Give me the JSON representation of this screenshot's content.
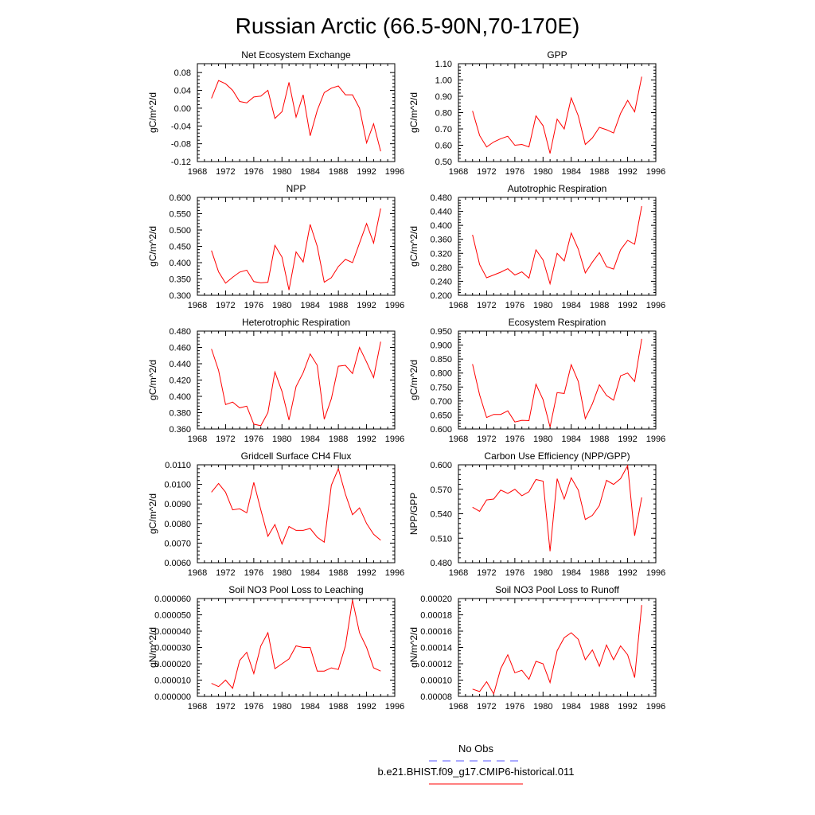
{
  "title": "Russian Arctic (66.5-90N,70-170E)",
  "legend": {
    "entries": [
      {
        "label": "No Obs",
        "color": "#5555ff",
        "style": "dashed"
      },
      {
        "label": "b.e21.BHIST.f09_g17.CMIP6-historical.011",
        "color": "#ff0000",
        "style": "solid"
      }
    ]
  },
  "chart_data": [
    {
      "type": "line",
      "title": "Net Ecosystem Exchange",
      "ylabel": "gC/m^2/d",
      "xlim": [
        1968,
        1996
      ],
      "xticks": [
        "1968",
        "1972",
        "1976",
        "1980",
        "1984",
        "1988",
        "1992",
        "1996"
      ],
      "ylim": [
        -0.12,
        0.1
      ],
      "yticks": [
        "-0.12",
        "-0.08",
        "-0.04",
        "0.00",
        "0.04",
        "0.08"
      ],
      "series": [
        {
          "color": "#ff0000",
          "x": [
            1970,
            1971,
            1972,
            1973,
            1974,
            1975,
            1976,
            1977,
            1978,
            1979,
            1980,
            1981,
            1982,
            1983,
            1984,
            1985,
            1986,
            1987,
            1988,
            1989,
            1990,
            1991,
            1992,
            1993,
            1994
          ],
          "y": [
            0.022,
            0.062,
            0.055,
            0.04,
            0.015,
            0.012,
            0.025,
            0.027,
            0.04,
            -0.023,
            -0.008,
            0.058,
            -0.02,
            0.03,
            -0.062,
            -0.005,
            0.035,
            0.045,
            0.05,
            0.03,
            0.03,
            0.0,
            -0.078,
            -0.035,
            -0.097
          ]
        }
      ]
    },
    {
      "type": "line",
      "title": "GPP",
      "ylabel": "gC/m^2/d",
      "xlim": [
        1968,
        1996
      ],
      "xticks": [
        "1968",
        "1972",
        "1976",
        "1980",
        "1984",
        "1988",
        "1992",
        "1996"
      ],
      "ylim": [
        0.5,
        1.1
      ],
      "yticks": [
        "0.50",
        "0.60",
        "0.70",
        "0.80",
        "0.90",
        "1.00",
        "1.10"
      ],
      "series": [
        {
          "color": "#ff0000",
          "x": [
            1970,
            1971,
            1972,
            1973,
            1974,
            1975,
            1976,
            1977,
            1978,
            1979,
            1980,
            1981,
            1982,
            1983,
            1984,
            1985,
            1986,
            1987,
            1988,
            1989,
            1990,
            1991,
            1992,
            1993,
            1994
          ],
          "y": [
            0.81,
            0.66,
            0.59,
            0.62,
            0.64,
            0.655,
            0.6,
            0.605,
            0.59,
            0.78,
            0.72,
            0.55,
            0.76,
            0.7,
            0.89,
            0.78,
            0.605,
            0.645,
            0.71,
            0.695,
            0.675,
            0.795,
            0.875,
            0.805,
            1.02
          ]
        }
      ]
    },
    {
      "type": "line",
      "title": "NPP",
      "ylabel": "gC/m^2/d",
      "xlim": [
        1968,
        1996
      ],
      "xticks": [
        "1968",
        "1972",
        "1976",
        "1980",
        "1984",
        "1988",
        "1992",
        "1996"
      ],
      "ylim": [
        0.3,
        0.6
      ],
      "yticks": [
        "0.300",
        "0.350",
        "0.400",
        "0.450",
        "0.500",
        "0.550",
        "0.600"
      ],
      "series": [
        {
          "color": "#ff0000",
          "x": [
            1970,
            1971,
            1972,
            1973,
            1974,
            1975,
            1976,
            1977,
            1978,
            1979,
            1980,
            1981,
            1982,
            1983,
            1984,
            1985,
            1986,
            1987,
            1988,
            1989,
            1990,
            1991,
            1992,
            1993,
            1994
          ],
          "y": [
            0.437,
            0.372,
            0.337,
            0.355,
            0.371,
            0.377,
            0.342,
            0.338,
            0.34,
            0.453,
            0.417,
            0.316,
            0.433,
            0.402,
            0.517,
            0.45,
            0.34,
            0.354,
            0.388,
            0.41,
            0.4,
            0.46,
            0.52,
            0.46,
            0.566
          ]
        }
      ]
    },
    {
      "type": "line",
      "title": "Autotrophic Respiration",
      "ylabel": "gC/m^2/d",
      "xlim": [
        1968,
        1996
      ],
      "xticks": [
        "1968",
        "1972",
        "1976",
        "1980",
        "1984",
        "1988",
        "1992",
        "1996"
      ],
      "ylim": [
        0.2,
        0.48
      ],
      "yticks": [
        "0.200",
        "0.240",
        "0.280",
        "0.320",
        "0.360",
        "0.400",
        "0.440",
        "0.480"
      ],
      "series": [
        {
          "color": "#ff0000",
          "x": [
            1970,
            1971,
            1972,
            1973,
            1974,
            1975,
            1976,
            1977,
            1978,
            1979,
            1980,
            1981,
            1982,
            1983,
            1984,
            1985,
            1986,
            1987,
            1988,
            1989,
            1990,
            1991,
            1992,
            1993,
            1994
          ],
          "y": [
            0.373,
            0.288,
            0.25,
            0.258,
            0.266,
            0.276,
            0.258,
            0.267,
            0.249,
            0.33,
            0.301,
            0.233,
            0.32,
            0.298,
            0.378,
            0.332,
            0.264,
            0.295,
            0.322,
            0.282,
            0.275,
            0.33,
            0.357,
            0.346,
            0.455
          ]
        }
      ]
    },
    {
      "type": "line",
      "title": "Heterotrophic Respiration",
      "ylabel": "gC/m^2/d",
      "xlim": [
        1968,
        1996
      ],
      "xticks": [
        "1968",
        "1972",
        "1976",
        "1980",
        "1984",
        "1988",
        "1992",
        "1996"
      ],
      "ylim": [
        0.36,
        0.48
      ],
      "yticks": [
        "0.360",
        "0.380",
        "0.400",
        "0.420",
        "0.440",
        "0.460",
        "0.480"
      ],
      "series": [
        {
          "color": "#ff0000",
          "x": [
            1970,
            1971,
            1972,
            1973,
            1974,
            1975,
            1976,
            1977,
            1978,
            1979,
            1980,
            1981,
            1982,
            1983,
            1984,
            1985,
            1986,
            1987,
            1988,
            1989,
            1990,
            1991,
            1992,
            1993,
            1994
          ],
          "y": [
            0.458,
            0.432,
            0.39,
            0.393,
            0.386,
            0.388,
            0.366,
            0.364,
            0.38,
            0.43,
            0.406,
            0.371,
            0.412,
            0.429,
            0.452,
            0.438,
            0.372,
            0.397,
            0.437,
            0.438,
            0.428,
            0.46,
            0.442,
            0.423,
            0.467
          ]
        }
      ]
    },
    {
      "type": "line",
      "title": "Ecosystem Respiration",
      "ylabel": "gC/m^2/d",
      "xlim": [
        1968,
        1996
      ],
      "xticks": [
        "1968",
        "1972",
        "1976",
        "1980",
        "1984",
        "1988",
        "1992",
        "1996"
      ],
      "ylim": [
        0.6,
        0.95
      ],
      "yticks": [
        "0.600",
        "0.650",
        "0.700",
        "0.750",
        "0.800",
        "0.850",
        "0.900",
        "0.950"
      ],
      "series": [
        {
          "color": "#ff0000",
          "x": [
            1970,
            1971,
            1972,
            1973,
            1974,
            1975,
            1976,
            1977,
            1978,
            1979,
            1980,
            1981,
            1982,
            1983,
            1984,
            1985,
            1986,
            1987,
            1988,
            1989,
            1990,
            1991,
            1992,
            1993,
            1994
          ],
          "y": [
            0.832,
            0.722,
            0.641,
            0.652,
            0.652,
            0.665,
            0.625,
            0.631,
            0.63,
            0.76,
            0.705,
            0.607,
            0.73,
            0.727,
            0.83,
            0.77,
            0.637,
            0.69,
            0.758,
            0.72,
            0.703,
            0.79,
            0.8,
            0.77,
            0.922
          ]
        }
      ]
    },
    {
      "type": "line",
      "title": "Gridcell Surface CH4 Flux",
      "ylabel": "gC/m^2/d",
      "xlim": [
        1968,
        1996
      ],
      "xticks": [
        "1968",
        "1972",
        "1976",
        "1980",
        "1984",
        "1988",
        "1992",
        "1996"
      ],
      "ylim": [
        0.006,
        0.011
      ],
      "yticks": [
        "0.0060",
        "0.0070",
        "0.0080",
        "0.0090",
        "0.0100",
        "0.0110"
      ],
      "series": [
        {
          "color": "#ff0000",
          "x": [
            1970,
            1971,
            1972,
            1973,
            1974,
            1975,
            1976,
            1977,
            1978,
            1979,
            1980,
            1981,
            1982,
            1983,
            1984,
            1985,
            1986,
            1987,
            1988,
            1989,
            1990,
            1991,
            1992,
            1993,
            1994
          ],
          "y": [
            0.0096,
            0.01005,
            0.0096,
            0.0087,
            0.00875,
            0.00855,
            0.0101,
            0.0087,
            0.00735,
            0.00795,
            0.00695,
            0.00785,
            0.00765,
            0.00765,
            0.00775,
            0.0073,
            0.00705,
            0.00995,
            0.0108,
            0.0095,
            0.00845,
            0.0088,
            0.008,
            0.00745,
            0.00715
          ]
        }
      ]
    },
    {
      "type": "line",
      "title": "Carbon Use Efficiency (NPP/GPP)",
      "ylabel": "NPP/GPP",
      "xlim": [
        1968,
        1996
      ],
      "xticks": [
        "1968",
        "1972",
        "1976",
        "1980",
        "1984",
        "1988",
        "1992",
        "1996"
      ],
      "ylim": [
        0.48,
        0.6
      ],
      "yticks": [
        "0.480",
        "0.510",
        "0.540",
        "0.570",
        "0.600"
      ],
      "series": [
        {
          "color": "#ff0000",
          "x": [
            1970,
            1971,
            1972,
            1973,
            1974,
            1975,
            1976,
            1977,
            1978,
            1979,
            1980,
            1981,
            1982,
            1983,
            1984,
            1985,
            1986,
            1987,
            1988,
            1989,
            1990,
            1991,
            1992,
            1993,
            1994
          ],
          "y": [
            0.548,
            0.543,
            0.557,
            0.558,
            0.569,
            0.565,
            0.57,
            0.562,
            0.567,
            0.582,
            0.58,
            0.494,
            0.583,
            0.558,
            0.584,
            0.569,
            0.533,
            0.538,
            0.55,
            0.581,
            0.576,
            0.583,
            0.599,
            0.513,
            0.56
          ]
        }
      ]
    },
    {
      "type": "line",
      "title": "Soil NO3 Pool Loss to Leaching",
      "ylabel": "gN/m^2/d",
      "xlim": [
        1968,
        1996
      ],
      "xticks": [
        "1968",
        "1972",
        "1976",
        "1980",
        "1984",
        "1988",
        "1992",
        "1996"
      ],
      "ylim": [
        0.0,
        6e-05
      ],
      "yticks": [
        "0.000000",
        "0.000010",
        "0.000020",
        "0.000030",
        "0.000040",
        "0.000050",
        "0.000060"
      ],
      "series": [
        {
          "color": "#ff0000",
          "x": [
            1970,
            1971,
            1972,
            1973,
            1974,
            1975,
            1976,
            1977,
            1978,
            1979,
            1980,
            1981,
            1982,
            1983,
            1984,
            1985,
            1986,
            1987,
            1988,
            1989,
            1990,
            1991,
            1992,
            1993,
            1994
          ],
          "y": [
            8e-06,
            6e-06,
            1e-05,
            5e-06,
            2.2e-05,
            2.7e-05,
            1.4e-05,
            3.1e-05,
            3.9e-05,
            1.7e-05,
            2e-05,
            2.3e-05,
            3.1e-05,
            3e-05,
            3e-05,
            1.55e-05,
            1.55e-05,
            1.75e-05,
            1.65e-05,
            3.1e-05,
            5.9e-05,
            3.9e-05,
            3e-05,
            1.75e-05,
            1.55e-05
          ]
        }
      ]
    },
    {
      "type": "line",
      "title": "Soil NO3 Pool Loss to Runoff",
      "ylabel": "gN/m^2/d",
      "xlim": [
        1968,
        1996
      ],
      "xticks": [
        "1968",
        "1972",
        "1976",
        "1980",
        "1984",
        "1988",
        "1992",
        "1996"
      ],
      "ylim": [
        8e-05,
        0.0002
      ],
      "yticks": [
        "0.00008",
        "0.00010",
        "0.00012",
        "0.00014",
        "0.00016",
        "0.00018",
        "0.00020"
      ],
      "series": [
        {
          "color": "#ff0000",
          "x": [
            1970,
            1971,
            1972,
            1973,
            1974,
            1975,
            1976,
            1977,
            1978,
            1979,
            1980,
            1981,
            1982,
            1983,
            1984,
            1985,
            1986,
            1987,
            1988,
            1989,
            1990,
            1991,
            1992,
            1993,
            1994
          ],
          "y": [
            8.9e-05,
            8.6e-05,
            9.8e-05,
            8.3e-05,
            0.000114,
            0.000131,
            0.000109,
            0.000112,
            0.000101,
            0.000123,
            0.00012,
            9.7e-05,
            0.000136,
            0.000152,
            0.000158,
            0.00015,
            0.000125,
            0.000137,
            0.000117,
            0.000143,
            0.000125,
            0.000142,
            0.000131,
            0.000103,
            0.000192
          ]
        }
      ]
    }
  ]
}
